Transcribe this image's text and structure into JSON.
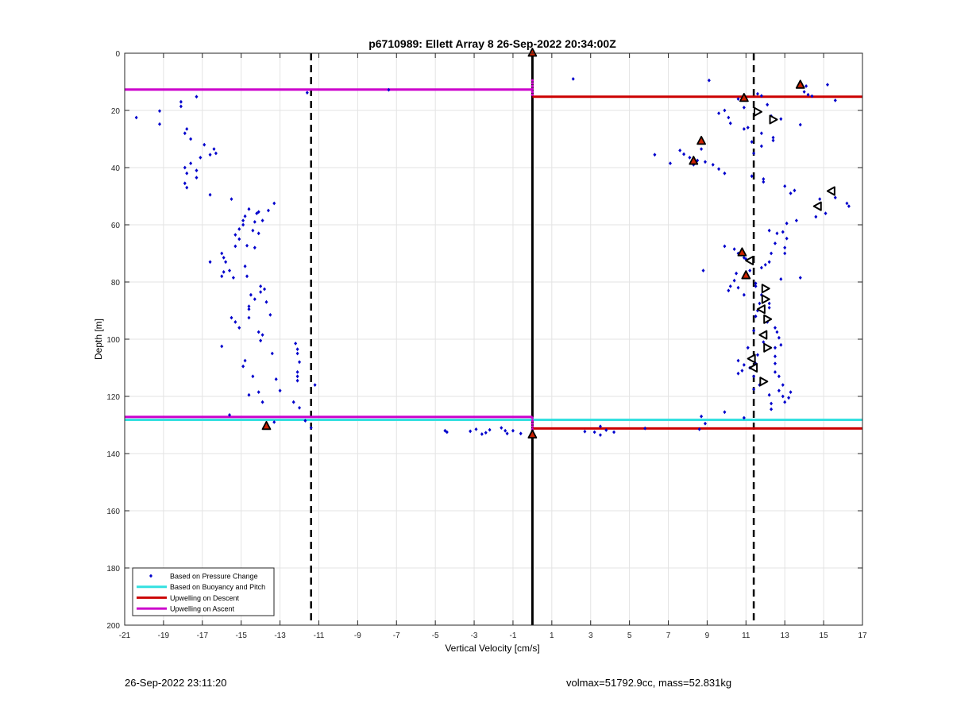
{
  "chart_data": {
    "type": "scatter",
    "title": "p6710989: Ellett Array 8 26-Sep-2022 20:34:00Z",
    "xlabel": "Vertical Velocity [cm/s]",
    "ylabel": "Depth [m]",
    "xlim": [
      -21,
      17
    ],
    "ylim": [
      0,
      200
    ],
    "y_reversed": true,
    "grid": true,
    "xticks": [
      -21,
      -19,
      -17,
      -15,
      -13,
      -11,
      -9,
      -7,
      -5,
      -3,
      -1,
      1,
      3,
      5,
      7,
      9,
      11,
      13,
      15,
      17
    ],
    "yticks": [
      0,
      20,
      40,
      60,
      80,
      100,
      120,
      140,
      160,
      180,
      200
    ],
    "legend": {
      "placement": "bottom-left",
      "entries": [
        {
          "label": "Based on Pressure Change",
          "color": "#0000cc",
          "style": "marker"
        },
        {
          "label": "Based on Buoyancy and Pitch",
          "color": "#33e0e0",
          "style": "line"
        },
        {
          "label": "Upwelling on Descent",
          "color": "#cc0000",
          "style": "line"
        },
        {
          "label": "Upwelling on Ascent",
          "color": "#cc00cc",
          "style": "line"
        }
      ]
    },
    "reference_lines": {
      "vertical_solid_x": 0,
      "vertical_dashed_x": [
        -11.4,
        11.4
      ]
    },
    "series": [
      {
        "name": "Based on Pressure Change",
        "color": "#0000cc",
        "points": [
          [
            -20.4,
            22.5
          ],
          [
            -19.2,
            20.2
          ],
          [
            -19.2,
            24.8
          ],
          [
            -18.1,
            17
          ],
          [
            -18.1,
            18.6
          ],
          [
            -17.9,
            28
          ],
          [
            -17.8,
            26.5
          ],
          [
            -17.6,
            30
          ],
          [
            -17.3,
            15.2
          ],
          [
            -17.9,
            40
          ],
          [
            -17.9,
            45.5
          ],
          [
            -17.8,
            47
          ],
          [
            -17.6,
            38.5
          ],
          [
            -17.8,
            42
          ],
          [
            -17.3,
            43.5
          ],
          [
            -17.3,
            41
          ],
          [
            -17.1,
            36.5
          ],
          [
            -16.9,
            32
          ],
          [
            -16.6,
            35.5
          ],
          [
            -16.4,
            33.5
          ],
          [
            -16.3,
            35
          ],
          [
            -16.6,
            49.5
          ],
          [
            -15.5,
            51
          ],
          [
            -14.6,
            54.5
          ],
          [
            -14.8,
            57
          ],
          [
            -14.9,
            58.5
          ],
          [
            -14.9,
            60
          ],
          [
            -15.1,
            61.5
          ],
          [
            -15.3,
            63.5
          ],
          [
            -15.1,
            65
          ],
          [
            -15.3,
            67.5
          ],
          [
            -14.7,
            67.3
          ],
          [
            -14.3,
            68
          ],
          [
            -14.1,
            63
          ],
          [
            -13.9,
            58.5
          ],
          [
            -14.2,
            56
          ],
          [
            -13.6,
            55
          ],
          [
            -13.3,
            52.5
          ],
          [
            -14.1,
            55.5
          ],
          [
            -14.3,
            59
          ],
          [
            -14.4,
            62
          ],
          [
            -16,
            70
          ],
          [
            -15.9,
            71.5
          ],
          [
            -15.8,
            73
          ],
          [
            -16.6,
            73
          ],
          [
            -15.6,
            76
          ],
          [
            -15.9,
            76.5
          ],
          [
            -16,
            78
          ],
          [
            -15.4,
            78.5
          ],
          [
            -14.8,
            74.5
          ],
          [
            -14.7,
            78
          ],
          [
            -14,
            81.5
          ],
          [
            -14,
            83.5
          ],
          [
            -13.8,
            82.5
          ],
          [
            -14.5,
            84.5
          ],
          [
            -14.6,
            88.5
          ],
          [
            -14.6,
            89.5
          ],
          [
            -14.3,
            86
          ],
          [
            -13.7,
            87
          ],
          [
            -13.5,
            91.5
          ],
          [
            -15.5,
            92.5
          ],
          [
            -15.3,
            94
          ],
          [
            -15.1,
            96
          ],
          [
            -14.6,
            92.5
          ],
          [
            -14.1,
            97.5
          ],
          [
            -13.9,
            98.5
          ],
          [
            -14,
            100.5
          ],
          [
            -16,
            102.5
          ],
          [
            -14.8,
            107.5
          ],
          [
            -14.9,
            109.5
          ],
          [
            -13.4,
            105
          ],
          [
            -14.4,
            113
          ],
          [
            -14.6,
            119.5
          ],
          [
            -14.1,
            118.5
          ],
          [
            -13.9,
            122
          ],
          [
            -13.2,
            114
          ],
          [
            -13,
            118
          ],
          [
            -12.2,
            101.5
          ],
          [
            -12.1,
            103.5
          ],
          [
            -12.1,
            105
          ],
          [
            -12.1,
            111.5
          ],
          [
            -12.1,
            113
          ],
          [
            -12.1,
            114.5
          ],
          [
            -12,
            108
          ],
          [
            -12.3,
            122
          ],
          [
            -12,
            124
          ],
          [
            -11.7,
            128.5
          ],
          [
            -11.4,
            131
          ],
          [
            -11.2,
            116
          ],
          [
            -13.3,
            129
          ],
          [
            -15.6,
            126.5
          ],
          [
            -11.6,
            13.8
          ],
          [
            -7.4,
            12.8
          ],
          [
            -4.5,
            132
          ],
          [
            -4.4,
            132.5
          ],
          [
            -3.2,
            132.2
          ],
          [
            -2.9,
            131.5
          ],
          [
            -2.6,
            133.2
          ],
          [
            -2.4,
            132.7
          ],
          [
            -2.2,
            131.7
          ],
          [
            -1.6,
            131
          ],
          [
            -1.4,
            132
          ],
          [
            -1.3,
            133
          ],
          [
            -1,
            132
          ],
          [
            -0.6,
            133
          ],
          [
            2.1,
            9
          ],
          [
            2.7,
            132.3
          ],
          [
            3.2,
            132.5
          ],
          [
            3.5,
            130.5
          ],
          [
            3.5,
            133.5
          ],
          [
            3.8,
            131.8
          ],
          [
            4.2,
            132.5
          ],
          [
            5.8,
            131.2
          ],
          [
            6.3,
            35.5
          ],
          [
            7.1,
            38.5
          ],
          [
            7.6,
            34
          ],
          [
            7.8,
            35.3
          ],
          [
            8.1,
            36.5
          ],
          [
            8.3,
            39
          ],
          [
            8.5,
            37.5
          ],
          [
            8.7,
            33.5
          ],
          [
            8.7,
            30
          ],
          [
            8.9,
            38
          ],
          [
            9.1,
            9.5
          ],
          [
            9.3,
            39
          ],
          [
            9.6,
            40.5
          ],
          [
            9.9,
            42
          ],
          [
            9.6,
            21
          ],
          [
            9.9,
            20
          ],
          [
            10.1,
            22.5
          ],
          [
            10.2,
            24.5
          ],
          [
            10.6,
            16
          ],
          [
            10.9,
            15
          ],
          [
            10.9,
            19
          ],
          [
            10.9,
            26.5
          ],
          [
            11.1,
            26
          ],
          [
            11.3,
            31
          ],
          [
            11.3,
            43
          ],
          [
            11.4,
            35
          ],
          [
            11.6,
            14.2
          ],
          [
            11.8,
            14.9
          ],
          [
            11.8,
            28
          ],
          [
            11.8,
            32.5
          ],
          [
            11.9,
            44
          ],
          [
            11.9,
            45
          ],
          [
            12.1,
            18
          ],
          [
            12.3,
            22
          ],
          [
            12.4,
            30.5
          ],
          [
            12.4,
            29.5
          ],
          [
            12.8,
            23
          ],
          [
            13,
            46.5
          ],
          [
            13.3,
            49
          ],
          [
            13.5,
            48
          ],
          [
            13.6,
            58.5
          ],
          [
            13.8,
            25
          ],
          [
            14,
            13.5
          ],
          [
            14.2,
            14.5
          ],
          [
            14.4,
            15
          ],
          [
            14.1,
            11.5
          ],
          [
            15.2,
            11
          ],
          [
            15.6,
            16.5
          ],
          [
            14.8,
            51
          ],
          [
            15.1,
            56
          ],
          [
            15.6,
            50.5
          ],
          [
            16.2,
            52.5
          ],
          [
            16.3,
            53.5
          ],
          [
            14.6,
            57.2
          ],
          [
            12.2,
            62
          ],
          [
            12.6,
            63
          ],
          [
            12.9,
            62.5
          ],
          [
            13.1,
            59.5
          ],
          [
            13.1,
            64.8
          ],
          [
            13,
            68
          ],
          [
            13,
            70
          ],
          [
            12.5,
            66.5
          ],
          [
            12.3,
            70
          ],
          [
            12.2,
            73
          ],
          [
            12,
            74
          ],
          [
            11.8,
            75
          ],
          [
            11.5,
            80.5
          ],
          [
            11.5,
            81.5
          ],
          [
            11.8,
            84.5
          ],
          [
            11.7,
            87.5
          ],
          [
            12.2,
            87.5
          ],
          [
            12.2,
            89
          ],
          [
            12.2,
            93
          ],
          [
            12.1,
            94
          ],
          [
            12.5,
            96
          ],
          [
            12.6,
            97.5
          ],
          [
            12.7,
            99.5
          ],
          [
            12.8,
            102
          ],
          [
            12.5,
            106
          ],
          [
            12.5,
            108.5
          ],
          [
            12.5,
            111.5
          ],
          [
            12.7,
            113
          ],
          [
            12.9,
            116
          ],
          [
            12.7,
            118
          ],
          [
            12.9,
            120
          ],
          [
            13,
            122
          ],
          [
            13.3,
            118.5
          ],
          [
            13.2,
            120.5
          ],
          [
            12.3,
            122.5
          ],
          [
            12.3,
            124.5
          ],
          [
            12.2,
            119.5
          ],
          [
            11.7,
            116
          ],
          [
            11.4,
            117.5
          ],
          [
            11.4,
            113
          ],
          [
            11.5,
            108.5
          ],
          [
            11.6,
            105.5
          ],
          [
            11.9,
            101
          ],
          [
            11.1,
            103
          ],
          [
            10.6,
            107.5
          ],
          [
            10.9,
            109
          ],
          [
            10.6,
            112
          ],
          [
            10.8,
            111
          ],
          [
            11.2,
            110
          ],
          [
            11.4,
            97
          ],
          [
            11.5,
            92
          ],
          [
            11.6,
            90
          ],
          [
            12.5,
            103
          ],
          [
            12.8,
            79
          ],
          [
            13.8,
            78.5
          ],
          [
            9.9,
            67.5
          ],
          [
            10.4,
            68.5
          ],
          [
            10.6,
            70
          ],
          [
            10.9,
            71.5
          ],
          [
            11,
            72
          ],
          [
            10.5,
            77
          ],
          [
            10.4,
            79.5
          ],
          [
            10.2,
            81.5
          ],
          [
            10.1,
            83
          ],
          [
            10.6,
            82
          ],
          [
            10.9,
            84.5
          ],
          [
            11.2,
            76
          ],
          [
            8.8,
            76
          ],
          [
            9.9,
            125.5
          ],
          [
            10.9,
            127.5
          ],
          [
            8.7,
            127
          ],
          [
            8.6,
            131.5
          ],
          [
            8.9,
            129.5
          ]
        ]
      },
      {
        "name": "Based on Buoyancy and Pitch",
        "color": "#33e0e0",
        "lines": [
          {
            "x": [
              -21,
              0
            ],
            "y": 128.2
          },
          {
            "x": [
              0,
              17
            ],
            "y": 128.2
          }
        ]
      },
      {
        "name": "Upwelling on Descent",
        "color": "#cc0000",
        "lines": [
          {
            "x": [
              0,
              17
            ],
            "y": 15.2
          },
          {
            "x": [
              0,
              17
            ],
            "y": 131.2
          }
        ]
      },
      {
        "name": "Upwelling on Ascent",
        "color": "#cc00cc",
        "lines": [
          {
            "x": [
              -21,
              0
            ],
            "y": 12.7
          },
          {
            "x": [
              -21,
              0
            ],
            "y": 127.2
          }
        ]
      }
    ],
    "highlight_markers": [
      [
        0,
        0
      ],
      [
        -13.7,
        130.5
      ],
      [
        0,
        133.5
      ],
      [
        13.8,
        11.2
      ],
      [
        10.9,
        15.8
      ],
      [
        8.7,
        30.8
      ],
      [
        8.3,
        37.8
      ],
      [
        10.8,
        69.8
      ],
      [
        11,
        77.8
      ]
    ],
    "triangle_markers": [
      {
        "x": 11.6,
        "y": 20.5,
        "dir": "right"
      },
      {
        "x": 12.4,
        "y": 23.2,
        "dir": "right"
      },
      {
        "x": 15.4,
        "y": 48.2,
        "dir": "left"
      },
      {
        "x": 14.7,
        "y": 53.5,
        "dir": "left"
      },
      {
        "x": 11.2,
        "y": 72.5,
        "dir": "left"
      },
      {
        "x": 12,
        "y": 82.3,
        "dir": "right"
      },
      {
        "x": 12,
        "y": 86,
        "dir": "right"
      },
      {
        "x": 11.8,
        "y": 89.5,
        "dir": "left"
      },
      {
        "x": 12.1,
        "y": 93,
        "dir": "right"
      },
      {
        "x": 11.9,
        "y": 98.5,
        "dir": "left"
      },
      {
        "x": 12.1,
        "y": 103,
        "dir": "right"
      },
      {
        "x": 11.3,
        "y": 106.8,
        "dir": "left"
      },
      {
        "x": 11.4,
        "y": 110,
        "dir": "left"
      },
      {
        "x": 11.9,
        "y": 114.8,
        "dir": "right"
      }
    ]
  },
  "footer": {
    "timestamp": "26-Sep-2022 23:11:20",
    "info": "volmax=51792.9cc, mass=52.831kg"
  }
}
